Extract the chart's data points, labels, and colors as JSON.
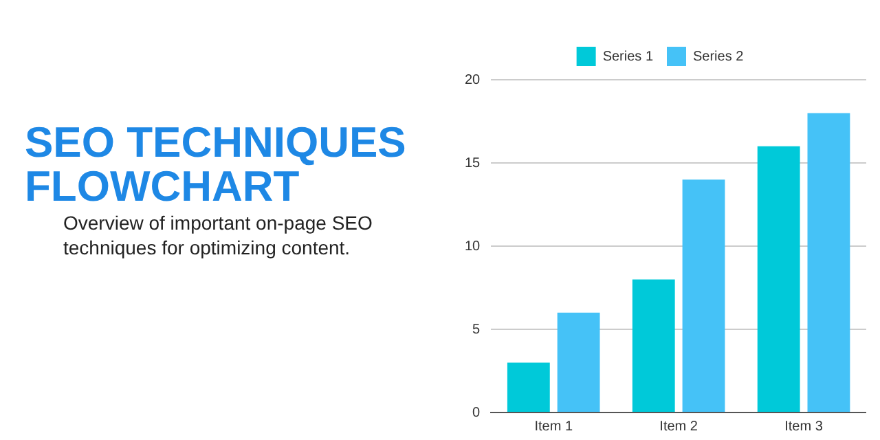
{
  "chart_data": {
    "type": "bar",
    "title": "SEO TECHNIQUES FLOWCHART",
    "subtitle": "Overview of important on-page SEO techniques for optimizing content.",
    "categories": [
      "Item 1",
      "Item 2",
      "Item 3"
    ],
    "series": [
      {
        "name": "Series 1",
        "color": "#00c9d9",
        "values": [
          3,
          8,
          16
        ]
      },
      {
        "name": "Series 2",
        "color": "#45c2f7",
        "values": [
          6,
          14,
          18
        ]
      }
    ],
    "ylim": [
      0,
      20
    ],
    "yticks": [
      0,
      5,
      10,
      15,
      20
    ],
    "grid": "y",
    "legend": "top"
  }
}
